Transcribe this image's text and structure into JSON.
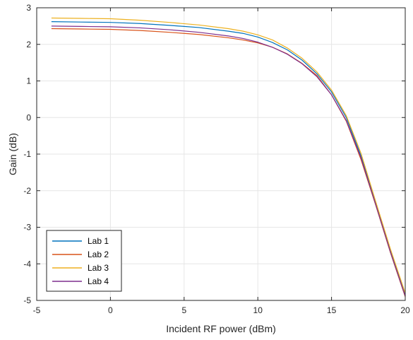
{
  "chart_data": {
    "type": "line",
    "title": "",
    "xlabel": "Incident RF power (dBm)",
    "ylabel": "Gain (dB)",
    "xlim": [
      -5,
      20
    ],
    "ylim": [
      -5,
      3
    ],
    "xticks": [
      -5,
      0,
      5,
      10,
      15,
      20
    ],
    "yticks": [
      -5,
      -4,
      -3,
      -2,
      -1,
      0,
      1,
      2,
      3
    ],
    "grid": true,
    "legend_position": "bottom-left",
    "x": [
      -4,
      -2,
      0,
      2,
      4,
      6,
      8,
      9,
      10,
      11,
      12,
      13,
      14,
      15,
      16,
      17,
      18,
      19,
      20
    ],
    "series": [
      {
        "name": "Lab 1",
        "color": "#0072BD",
        "values": [
          2.62,
          2.61,
          2.6,
          2.57,
          2.52,
          2.46,
          2.36,
          2.3,
          2.2,
          2.05,
          1.85,
          1.57,
          1.2,
          0.7,
          0.0,
          -1.05,
          -2.35,
          -3.65,
          -4.85
        ]
      },
      {
        "name": "Lab 2",
        "color": "#D95319",
        "values": [
          2.43,
          2.42,
          2.41,
          2.38,
          2.33,
          2.27,
          2.18,
          2.12,
          2.04,
          1.92,
          1.74,
          1.48,
          1.15,
          0.62,
          -0.1,
          -1.15,
          -2.4,
          -3.7,
          -4.9
        ]
      },
      {
        "name": "Lab 3",
        "color": "#EDB120",
        "values": [
          2.72,
          2.71,
          2.7,
          2.66,
          2.6,
          2.53,
          2.43,
          2.36,
          2.26,
          2.12,
          1.9,
          1.62,
          1.25,
          0.75,
          0.05,
          -0.98,
          -2.3,
          -3.6,
          -4.8
        ]
      },
      {
        "name": "Lab 4",
        "color": "#7E2F8E",
        "values": [
          2.5,
          2.49,
          2.48,
          2.45,
          2.4,
          2.33,
          2.23,
          2.16,
          2.06,
          1.92,
          1.73,
          1.47,
          1.12,
          0.62,
          -0.08,
          -1.1,
          -2.38,
          -3.68,
          -4.88
        ]
      }
    ]
  }
}
